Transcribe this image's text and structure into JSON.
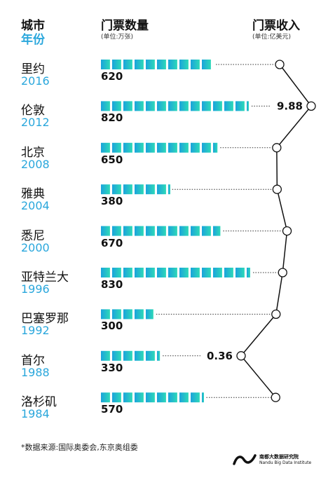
{
  "header": {
    "city_label": "城市",
    "year_label": "年份",
    "tickets_label": "门票数量",
    "tickets_unit": "(单位:万张)",
    "revenue_label": "门票收入",
    "revenue_unit": "(单位:亿美元)"
  },
  "colors": {
    "accent_blue": "#2aa7dc",
    "bar_start": "#1aa3dc",
    "bar_end": "#2ed9b8",
    "line": "#111111"
  },
  "chart_data": {
    "type": "bar",
    "series": [
      {
        "name": "门票数量",
        "values": [
          620,
          820,
          650,
          380,
          670,
          830,
          300,
          330,
          570
        ]
      },
      {
        "name": "门票收入",
        "values": [
          5.6,
          9.88,
          5.2,
          5.25,
          6.6,
          6.0,
          5.1,
          0.36,
          5.05
        ]
      }
    ],
    "rows": [
      {
        "city": "里约",
        "year": "2016",
        "tickets": "620"
      },
      {
        "city": "伦敦",
        "year": "2012",
        "tickets": "820"
      },
      {
        "city": "北京",
        "year": "2008",
        "tickets": "650"
      },
      {
        "city": "雅典",
        "year": "2004",
        "tickets": "380"
      },
      {
        "city": "悉尼",
        "year": "2000",
        "tickets": "670"
      },
      {
        "city": "亚特兰大",
        "year": "1996",
        "tickets": "830"
      },
      {
        "city": "巴塞罗那",
        "year": "1992",
        "tickets": "300"
      },
      {
        "city": "首尔",
        "year": "1988",
        "tickets": "330"
      },
      {
        "city": "洛杉矶",
        "year": "1984",
        "tickets": "570"
      }
    ],
    "annotations": [
      {
        "row": 1,
        "text": "9.88"
      },
      {
        "row": 7,
        "text": "0.36"
      }
    ]
  },
  "footnote": "*数据来源:国际奥委会,东京奥组委",
  "logo": {
    "line1": "南都大数据研究院",
    "line2": "Nandu Big Data Institute"
  }
}
